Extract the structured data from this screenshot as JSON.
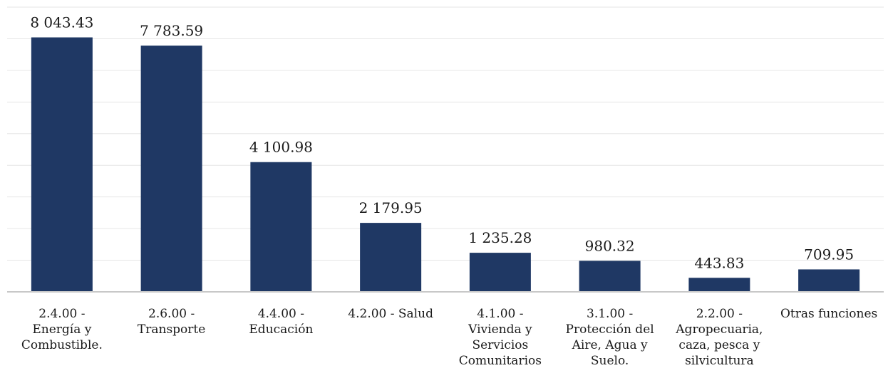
{
  "chart_data": {
    "type": "bar",
    "categories": [
      [
        "2.4.00 -",
        "Energía y",
        "Combustible."
      ],
      [
        "2.6.00 -",
        "Transporte"
      ],
      [
        "4.4.00 -",
        "Educación"
      ],
      [
        "4.2.00 -  Salud"
      ],
      [
        "4.1.00 -",
        "Vivienda y",
        "Servicios",
        "Comunitarios"
      ],
      [
        "3.1.00 -",
        "Protección del",
        "Aire, Agua y",
        "Suelo."
      ],
      [
        "2.2.00 -",
        "Agropecuaria,",
        "caza, pesca y",
        "silvicultura"
      ],
      [
        "Otras funciones"
      ]
    ],
    "values": [
      8043.43,
      7783.59,
      4100.98,
      2179.95,
      1235.28,
      980.32,
      443.83,
      709.95
    ],
    "value_labels": [
      "8 043.43",
      "7 783.59",
      "4 100.98",
      "2 179.95",
      "1 235.28",
      "980.32",
      "443.83",
      "709.95"
    ],
    "ylim": [
      0,
      9000
    ],
    "gridlines": 9,
    "grid": true,
    "bar_color": "#1f3864"
  }
}
